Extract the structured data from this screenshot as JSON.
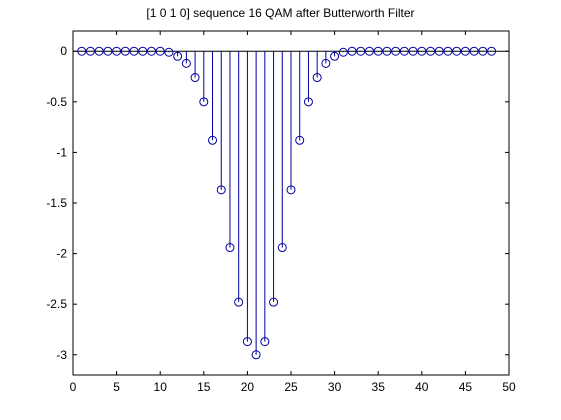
{
  "chart_data": {
    "type": "stem",
    "title": "[1 0 1 0] sequence 16 QAM after Butterworth Filter",
    "xlabel": "",
    "ylabel": "",
    "xlim": [
      0,
      50
    ],
    "ylim": [
      -3.2,
      0.2
    ],
    "xticks": [
      0,
      5,
      10,
      15,
      20,
      25,
      30,
      35,
      40,
      45,
      50
    ],
    "yticks": [
      0,
      -0.5,
      -1,
      -1.5,
      -2,
      -2.5,
      -3
    ],
    "ytick_labels": [
      "0",
      "-0.5",
      "-1",
      "-1.5",
      "-2",
      "-2.5",
      "-3"
    ],
    "grid": false,
    "marker": "circle",
    "color": "#0000a0",
    "series": [
      {
        "x": [
          1,
          2,
          3,
          4,
          5,
          6,
          7,
          8,
          9,
          10,
          11,
          12,
          13,
          14,
          15,
          16,
          17,
          18,
          19,
          20,
          21,
          22,
          23,
          24,
          25,
          26,
          27,
          28,
          29,
          30,
          31,
          32,
          33,
          34,
          35,
          36,
          37,
          38,
          39,
          40,
          41,
          42,
          43,
          44,
          45,
          46,
          47,
          48
        ],
        "y": [
          0,
          0,
          0,
          0,
          0,
          0,
          0,
          0,
          0,
          0,
          -0.01,
          -0.05,
          -0.12,
          -0.26,
          -0.5,
          -0.88,
          -1.37,
          -1.94,
          -2.48,
          -2.87,
          -3.0,
          -2.87,
          -2.48,
          -1.94,
          -1.37,
          -0.88,
          -0.5,
          -0.26,
          -0.12,
          -0.05,
          -0.01,
          0,
          0,
          0,
          0,
          0,
          0,
          0,
          0,
          0,
          0,
          0,
          0,
          0,
          0,
          0,
          0,
          0
        ]
      }
    ]
  }
}
